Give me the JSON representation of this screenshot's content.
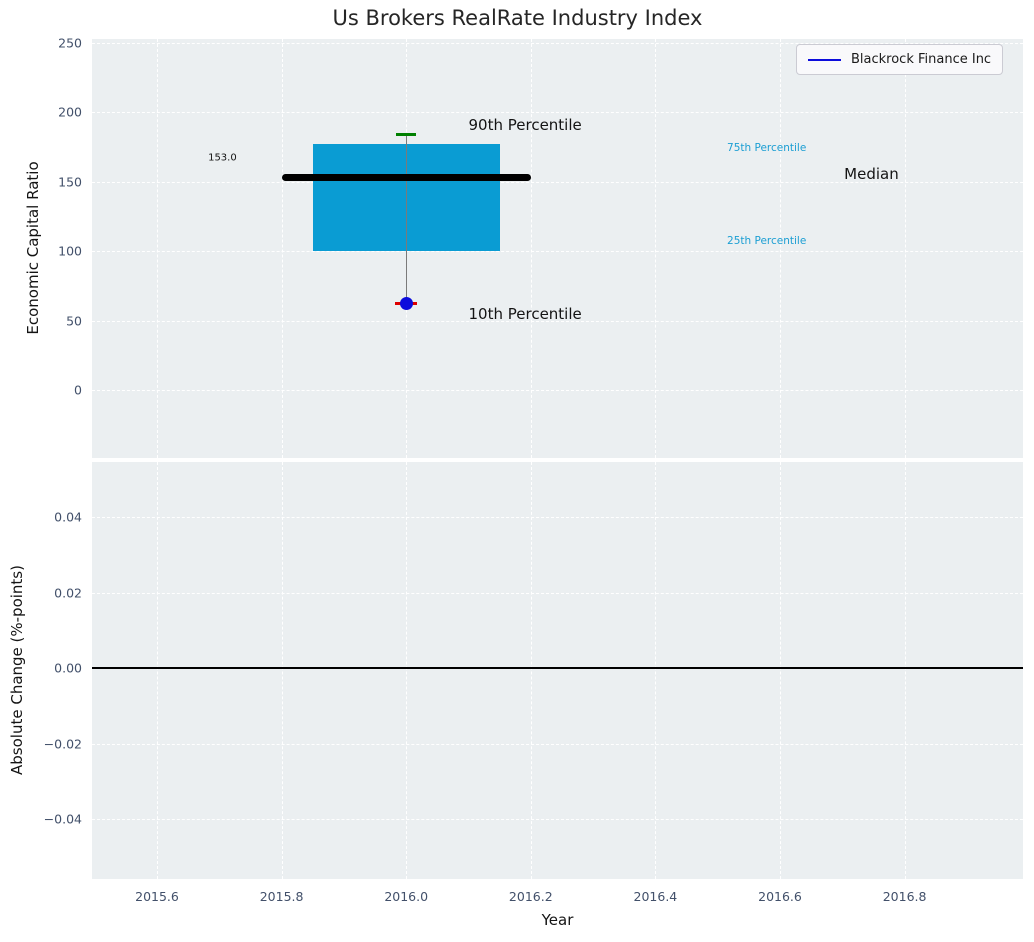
{
  "title": "Us Brokers RealRate Industry Index",
  "legend": {
    "label": "Blackrock Finance Inc",
    "line_color": "#0c0cdc"
  },
  "chart_data": [
    {
      "type": "boxplot",
      "title": "Us Brokers RealRate Industry Index",
      "ylabel": "Economic Capital Ratio",
      "xlim": [
        2015.496,
        2016.99
      ],
      "ylim": [
        -49,
        253
      ],
      "grid": true,
      "background": "#ebeff1",
      "yticks": [
        {
          "label": "0",
          "value": 0
        },
        {
          "label": "50",
          "value": 50
        },
        {
          "label": "100",
          "value": 100
        },
        {
          "label": "150",
          "value": 150
        },
        {
          "label": "200",
          "value": 200
        },
        {
          "label": "250",
          "value": 250
        }
      ],
      "xticks": [
        {
          "label": "2015.6",
          "value": 2015.6
        },
        {
          "label": "2015.8",
          "value": 2015.8
        },
        {
          "label": "2016.0",
          "value": 2016.0
        },
        {
          "label": "2016.2",
          "value": 2016.2
        },
        {
          "label": "2016.4",
          "value": 2016.4
        },
        {
          "label": "2016.6",
          "value": 2016.6
        },
        {
          "label": "2016.8",
          "value": 2016.8
        }
      ],
      "box": {
        "x_left": 2015.85,
        "x_right": 2016.15,
        "p25": 100,
        "p75": 177,
        "color": "#0a9cd3"
      },
      "median": {
        "value": 153.0,
        "x_left": 2015.8,
        "x_right": 2016.2,
        "color": "#000000",
        "thickness": 7
      },
      "whisker": {
        "x": 2016.0,
        "from": 62,
        "to": 184,
        "color": "#7a7a7a"
      },
      "percentile_caps": [
        {
          "id": "p90-cap",
          "value": 184,
          "x": 2016.0,
          "half_width": 0.016,
          "color": "#008000"
        },
        {
          "id": "p10-cap",
          "value": 62,
          "x": 2016.0,
          "half_width": 0.018,
          "color": "#dd0000"
        }
      ],
      "company_point": {
        "name": "Blackrock Finance Inc",
        "x": 2016.0,
        "value": 62,
        "color": "#0c0cdc",
        "diameter": 13
      },
      "annotations": [
        {
          "id": "p90-percentile-label",
          "text": "90th Percentile",
          "x": 2016.1,
          "y": 191,
          "color": "#141414",
          "size": 15
        },
        {
          "id": "p10-percentile-label",
          "text": "10th Percentile",
          "x": 2016.1,
          "y": 55,
          "color": "#141414",
          "size": 15
        },
        {
          "id": "median-value-label",
          "text": "153.0",
          "x": 2015.682,
          "y": 167,
          "color": "#141414",
          "size": 10
        },
        {
          "id": "p75-percentile-label",
          "text": "75th Percentile",
          "x": 2016.515,
          "y": 174,
          "color": "#1b9ed3",
          "size": 10.5
        },
        {
          "id": "p25-percentile-label",
          "text": "25th Percentile",
          "x": 2016.515,
          "y": 107,
          "color": "#1b9ed3",
          "size": 10.5
        },
        {
          "id": "median-label",
          "text": "Median",
          "x": 2016.703,
          "y": 155.5,
          "color": "#141414",
          "size": 15
        }
      ]
    },
    {
      "type": "line",
      "ylabel": "Absolute Change (%-points)",
      "xlabel": "Year",
      "xlim": [
        2015.496,
        2016.99
      ],
      "ylim": [
        -0.0559,
        0.0546
      ],
      "grid": true,
      "background": "#ebeff1",
      "yticks": [
        {
          "label": "0.04",
          "value": 0.04
        },
        {
          "label": "0.02",
          "value": 0.02
        },
        {
          "label": "0.00",
          "value": 0.0
        },
        {
          "label": "−0.02",
          "value": -0.02
        },
        {
          "label": "−0.04",
          "value": -0.04
        }
      ],
      "xticks": [
        {
          "label": "2015.6",
          "value": 2015.6
        },
        {
          "label": "2015.8",
          "value": 2015.8
        },
        {
          "label": "2016.0",
          "value": 2016.0
        },
        {
          "label": "2016.2",
          "value": 2016.2
        },
        {
          "label": "2016.4",
          "value": 2016.4
        },
        {
          "label": "2016.6",
          "value": 2016.6
        },
        {
          "label": "2016.8",
          "value": 2016.8
        }
      ],
      "zero_line": {
        "value": 0.0,
        "color": "#000000"
      },
      "series": []
    }
  ]
}
